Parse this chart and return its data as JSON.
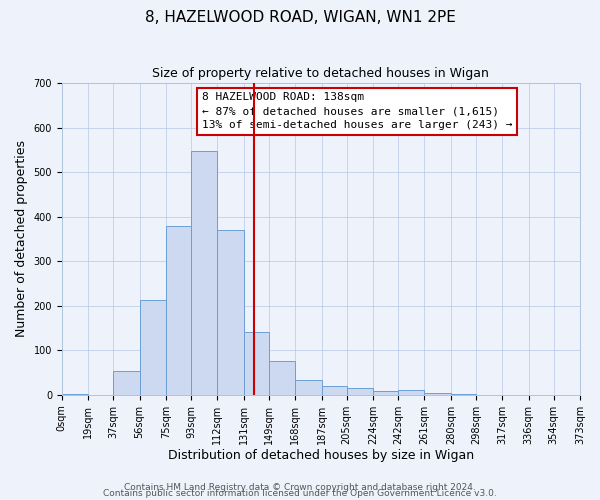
{
  "title": "8, HAZELWOOD ROAD, WIGAN, WN1 2PE",
  "subtitle": "Size of property relative to detached houses in Wigan",
  "xlabel": "Distribution of detached houses by size in Wigan",
  "ylabel": "Number of detached properties",
  "bar_heights": [
    3,
    0,
    53,
    213,
    380,
    547,
    370,
    140,
    75,
    33,
    20,
    15,
    8,
    10,
    5,
    3,
    0,
    0,
    0,
    0
  ],
  "bin_edges": [
    0,
    19,
    37,
    56,
    75,
    93,
    112,
    131,
    149,
    168,
    187,
    205,
    224,
    242,
    261,
    280,
    298,
    317,
    336,
    354,
    373
  ],
  "tick_labels": [
    "0sqm",
    "19sqm",
    "37sqm",
    "56sqm",
    "75sqm",
    "93sqm",
    "112sqm",
    "131sqm",
    "149sqm",
    "168sqm",
    "187sqm",
    "205sqm",
    "224sqm",
    "242sqm",
    "261sqm",
    "280sqm",
    "298sqm",
    "317sqm",
    "336sqm",
    "354sqm",
    "373sqm"
  ],
  "bar_color": "#ccd9f0",
  "bar_edge_color": "#6b9fd4",
  "vline_x": 138,
  "vline_color": "#cc0000",
  "annotation_text": "8 HAZELWOOD ROAD: 138sqm\n← 87% of detached houses are smaller (1,615)\n13% of semi-detached houses are larger (243) →",
  "annotation_box_color": "#cc0000",
  "ylim": [
    0,
    700
  ],
  "yticks": [
    0,
    100,
    200,
    300,
    400,
    500,
    600,
    700
  ],
  "background_color": "#eef2fb",
  "axes_background": "#eef2fb",
  "footer_line1": "Contains HM Land Registry data © Crown copyright and database right 2024.",
  "footer_line2": "Contains public sector information licensed under the Open Government Licence v3.0.",
  "title_fontsize": 11,
  "subtitle_fontsize": 9,
  "xlabel_fontsize": 9,
  "ylabel_fontsize": 9,
  "tick_fontsize": 7,
  "annotation_fontsize": 8,
  "footer_fontsize": 6.5
}
